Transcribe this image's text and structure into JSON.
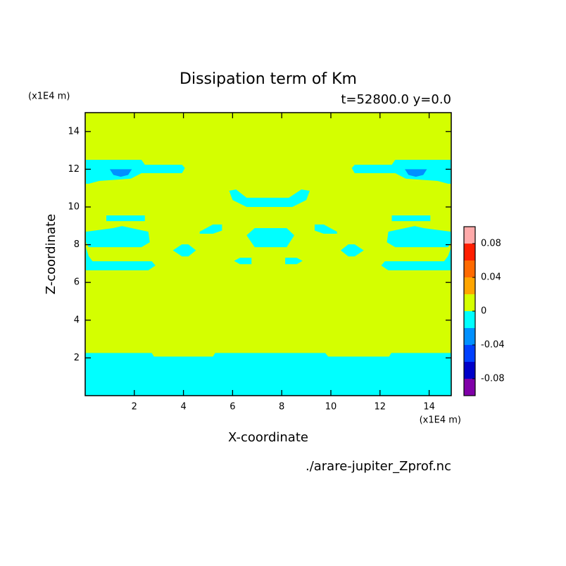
{
  "chart_data": {
    "type": "contour",
    "title": "Dissipation term of Km",
    "subtitle": "t=52800.0 y=0.0",
    "x_label": "X-coordinate",
    "y_label": "Z-coordinate",
    "x_unit": "(x1E4 m)",
    "y_unit": "(x1E4 m)",
    "file": "./arare-jupiter_Zprof.nc",
    "xlim": [
      0,
      14.9
    ],
    "ylim": [
      0,
      15
    ],
    "xticks": [
      2,
      4,
      6,
      8,
      10,
      12,
      14
    ],
    "yticks": [
      2,
      4,
      6,
      8,
      10,
      12,
      14
    ],
    "levels": [
      -0.1,
      -0.08,
      -0.06,
      -0.04,
      -0.02,
      0,
      0.02,
      0.04,
      0.06,
      0.08,
      0.1
    ],
    "colors": [
      "#8000a8",
      "#0000c8",
      "#0040ff",
      "#0090ff",
      "#00ffff",
      "#d4ff00",
      "#ffa500",
      "#ff6a00",
      "#ff1e00",
      "#ffaaaa"
    ],
    "colorbar_ticks": [
      -0.08,
      -0.04,
      0,
      0.04,
      0.08
    ],
    "regions": [
      {
        "range": [
          0,
          0.02
        ],
        "polygon": [
          [
            0,
            0
          ],
          [
            14.9,
            0
          ],
          [
            14.9,
            15
          ],
          [
            0,
            15
          ]
        ]
      },
      {
        "range": [
          -0.02,
          0
        ],
        "polygon": [
          [
            0,
            0
          ],
          [
            0,
            2.26
          ],
          [
            2.71,
            2.26
          ],
          [
            2.8,
            2.07
          ],
          [
            5.2,
            2.07
          ],
          [
            5.29,
            2.26
          ],
          [
            9.77,
            2.26
          ],
          [
            9.89,
            2.07
          ],
          [
            12.37,
            2.07
          ],
          [
            12.46,
            2.26
          ],
          [
            14.9,
            2.26
          ],
          [
            14.9,
            0
          ]
        ]
      },
      {
        "range": [
          -0.02,
          0
        ],
        "polygon": [
          [
            0.03,
            12.5
          ],
          [
            2.29,
            12.5
          ],
          [
            2.43,
            12.24
          ],
          [
            3.94,
            12.24
          ],
          [
            4.06,
            12.06
          ],
          [
            3.94,
            11.79
          ],
          [
            2.29,
            11.79
          ],
          [
            1.86,
            11.5
          ],
          [
            0.57,
            11.38
          ],
          [
            0.14,
            11.23
          ],
          [
            0.03,
            11.23
          ]
        ]
      },
      {
        "range": [
          -0.02,
          0
        ],
        "polygon": [
          [
            14.9,
            12.5
          ],
          [
            12.62,
            12.5
          ],
          [
            12.48,
            12.24
          ],
          [
            10.97,
            12.24
          ],
          [
            10.85,
            12.06
          ],
          [
            10.97,
            11.79
          ],
          [
            12.62,
            11.79
          ],
          [
            13.05,
            11.5
          ],
          [
            14.34,
            11.38
          ],
          [
            14.77,
            11.23
          ],
          [
            14.9,
            11.23
          ]
        ]
      },
      {
        "range": [
          -0.04,
          -0.02
        ],
        "polygon": [
          [
            1.0,
            12.0
          ],
          [
            1.9,
            12.0
          ],
          [
            1.75,
            11.7
          ],
          [
            1.45,
            11.6
          ],
          [
            1.15,
            11.7
          ]
        ]
      },
      {
        "range": [
          -0.04,
          -0.02
        ],
        "polygon": [
          [
            13.91,
            12.0
          ],
          [
            13.01,
            12.0
          ],
          [
            13.16,
            11.7
          ],
          [
            13.46,
            11.6
          ],
          [
            13.76,
            11.7
          ]
        ]
      },
      {
        "range": [
          -0.02,
          0
        ],
        "polygon": [
          [
            5.86,
            10.86
          ],
          [
            6.14,
            10.93
          ],
          [
            6.57,
            10.49
          ],
          [
            8.29,
            10.49
          ],
          [
            8.8,
            10.93
          ],
          [
            9.14,
            10.86
          ],
          [
            9.0,
            10.37
          ],
          [
            8.43,
            10.0
          ],
          [
            6.57,
            10.0
          ],
          [
            6.0,
            10.37
          ]
        ]
      },
      {
        "range": [
          -0.02,
          0
        ],
        "polygon": [
          [
            0.86,
            9.55
          ],
          [
            2.43,
            9.55
          ],
          [
            2.43,
            9.25
          ],
          [
            0.86,
            9.25
          ]
        ]
      },
      {
        "range": [
          -0.02,
          0
        ],
        "polygon": [
          [
            14.05,
            9.55
          ],
          [
            12.48,
            9.55
          ],
          [
            12.48,
            9.25
          ],
          [
            14.05,
            9.25
          ]
        ]
      },
      {
        "range": [
          -0.02,
          0
        ],
        "polygon": [
          [
            0.03,
            8.69
          ],
          [
            1.14,
            8.88
          ],
          [
            1.5,
            8.99
          ],
          [
            2.57,
            8.69
          ],
          [
            2.63,
            8.13
          ],
          [
            2.29,
            7.87
          ],
          [
            0.14,
            7.87
          ],
          [
            0.03,
            8.13
          ]
        ]
      },
      {
        "range": [
          -0.02,
          0
        ],
        "polygon": [
          [
            14.9,
            8.69
          ],
          [
            13.77,
            8.88
          ],
          [
            13.41,
            8.99
          ],
          [
            12.34,
            8.69
          ],
          [
            12.28,
            8.13
          ],
          [
            12.62,
            7.87
          ],
          [
            14.77,
            7.87
          ],
          [
            14.9,
            8.13
          ]
        ]
      },
      {
        "range": [
          -0.02,
          0
        ],
        "polygon": [
          [
            4.66,
            8.69
          ],
          [
            5.2,
            9.07
          ],
          [
            5.57,
            9.07
          ],
          [
            5.57,
            8.75
          ],
          [
            5.2,
            8.58
          ],
          [
            4.66,
            8.58
          ]
        ]
      },
      {
        "range": [
          -0.02,
          0
        ],
        "polygon": [
          [
            10.25,
            8.69
          ],
          [
            9.71,
            9.07
          ],
          [
            9.34,
            9.07
          ],
          [
            9.34,
            8.75
          ],
          [
            9.71,
            8.58
          ],
          [
            10.25,
            8.58
          ]
        ]
      },
      {
        "range": [
          -0.02,
          0
        ],
        "polygon": [
          [
            6.57,
            8.5
          ],
          [
            6.9,
            8.88
          ],
          [
            8.2,
            8.88
          ],
          [
            8.51,
            8.5
          ],
          [
            8.2,
            7.87
          ],
          [
            6.9,
            7.87
          ]
        ]
      },
      {
        "range": [
          -0.02,
          0
        ],
        "polygon": [
          [
            3.57,
            7.7
          ],
          [
            3.94,
            8.02
          ],
          [
            4.2,
            8.02
          ],
          [
            4.51,
            7.7
          ],
          [
            4.2,
            7.38
          ],
          [
            3.94,
            7.38
          ]
        ]
      },
      {
        "range": [
          -0.02,
          0
        ],
        "polygon": [
          [
            11.34,
            7.7
          ],
          [
            10.97,
            8.02
          ],
          [
            10.71,
            8.02
          ],
          [
            10.4,
            7.7
          ],
          [
            10.71,
            7.38
          ],
          [
            10.97,
            7.38
          ]
        ]
      },
      {
        "range": [
          -0.02,
          0
        ],
        "polygon": [
          [
            6.06,
            7.14
          ],
          [
            6.3,
            7.31
          ],
          [
            6.77,
            7.31
          ],
          [
            6.77,
            6.97
          ],
          [
            6.3,
            6.97
          ]
        ]
      },
      {
        "range": [
          -0.02,
          0
        ],
        "polygon": [
          [
            8.85,
            7.14
          ],
          [
            8.61,
            7.31
          ],
          [
            8.14,
            7.31
          ],
          [
            8.14,
            6.97
          ],
          [
            8.61,
            6.97
          ]
        ]
      },
      {
        "range": [
          -0.02,
          0
        ],
        "polygon": [
          [
            0.03,
            7.87
          ],
          [
            0.14,
            7.4
          ],
          [
            0.3,
            7.12
          ],
          [
            2.71,
            7.12
          ],
          [
            2.86,
            6.9
          ],
          [
            2.57,
            6.64
          ],
          [
            0.03,
            6.64
          ]
        ]
      },
      {
        "range": [
          -0.02,
          0
        ],
        "polygon": [
          [
            14.9,
            7.87
          ],
          [
            14.77,
            7.4
          ],
          [
            14.61,
            7.12
          ],
          [
            12.2,
            7.12
          ],
          [
            12.05,
            6.9
          ],
          [
            12.34,
            6.64
          ],
          [
            14.9,
            6.64
          ]
        ]
      }
    ]
  }
}
